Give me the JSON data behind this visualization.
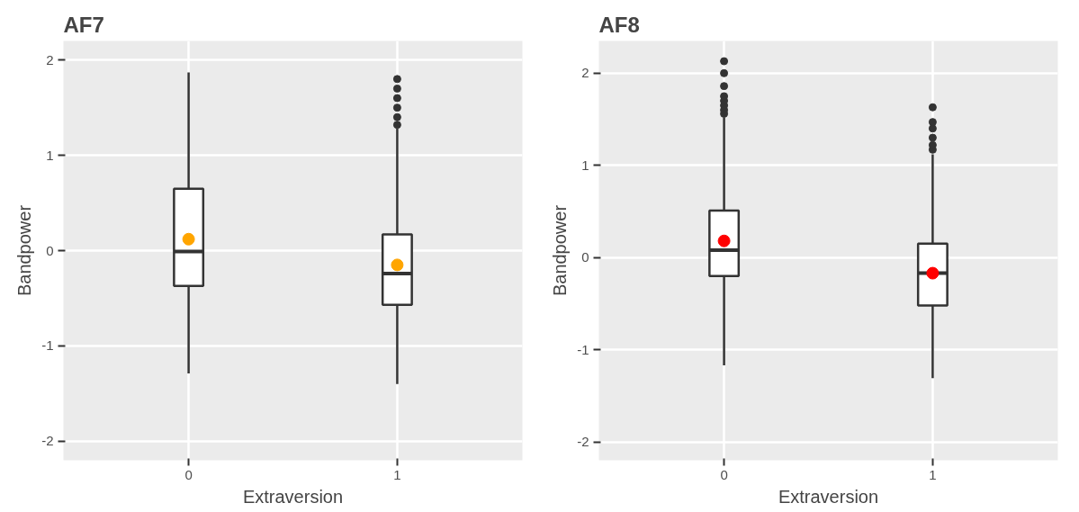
{
  "chart_data": [
    {
      "type": "box",
      "title": "AF7",
      "xlabel": "Extraversion",
      "ylabel": "Bandpower",
      "categories": [
        "0",
        "1"
      ],
      "color": "#333333",
      "boxes": [
        {
          "low": -1.29,
          "q1": -0.37,
          "median": -0.01,
          "q3": 0.65,
          "high": 1.87
        },
        {
          "low": -1.4,
          "q1": -0.57,
          "median": -0.24,
          "q3": 0.17,
          "high": 1.28,
          "outliers": [
            1.32,
            1.4,
            1.5,
            1.6,
            1.7,
            1.8
          ]
        }
      ],
      "series": [
        {
          "type": "scatter",
          "x": [
            "0",
            "1"
          ],
          "values": [
            0.12,
            -0.15
          ],
          "color": "#ffa500"
        }
      ],
      "ylim": [
        -2.2,
        2.2
      ],
      "yticks": [
        -2,
        -1,
        0,
        1,
        {
          "value": 2,
          "label": "2"
        }
      ],
      "grid": true
    },
    {
      "type": "box",
      "title": "AF8",
      "xlabel": "Extraversion",
      "ylabel": "Bandpower",
      "categories": [
        "0",
        "1"
      ],
      "color": "#333333",
      "boxes": [
        {
          "low": -1.17,
          "q1": -0.2,
          "median": 0.08,
          "q3": 0.51,
          "high": 1.52,
          "outliers": [
            1.56,
            1.6,
            1.65,
            1.7,
            1.75,
            1.86,
            2.0,
            2.13
          ]
        },
        {
          "low": -1.31,
          "q1": -0.52,
          "median": -0.17,
          "q3": 0.15,
          "high": 1.12,
          "outliers": [
            1.17,
            1.22,
            1.3,
            1.4,
            1.47,
            1.63
          ]
        }
      ],
      "series": [
        {
          "type": "scatter",
          "x": [
            "0",
            "1"
          ],
          "values": [
            0.18,
            -0.17
          ],
          "color": "#ff0000"
        }
      ],
      "ylim": [
        -2.2,
        2.35
      ],
      "yticks": [
        -2,
        -1,
        0,
        1,
        2
      ],
      "grid": true
    }
  ]
}
